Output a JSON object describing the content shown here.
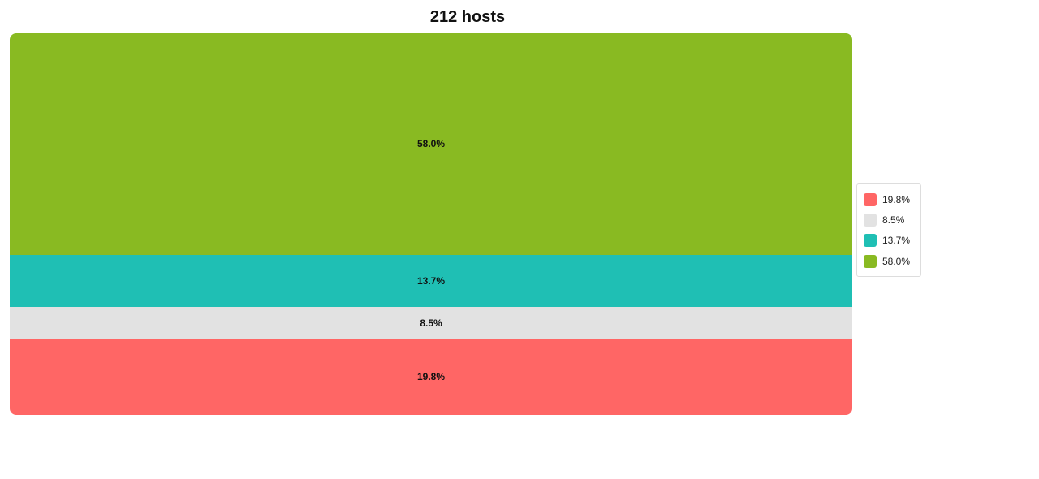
{
  "chart_data": {
    "type": "bar",
    "subtype": "stacked-100-percent",
    "title": "212 hosts",
    "xlabel": "",
    "ylabel": "",
    "grid": false,
    "legend_position": "right",
    "series": [
      {
        "label": "19.8%",
        "value": 19.8,
        "color": "#ff6665"
      },
      {
        "label": "8.5%",
        "value": 8.5,
        "color": "#e2e2e2"
      },
      {
        "label": "13.7%",
        "value": 13.7,
        "color": "#1fbfb4"
      },
      {
        "label": "58.0%",
        "value": 58.0,
        "color": "#89ba22"
      }
    ]
  }
}
